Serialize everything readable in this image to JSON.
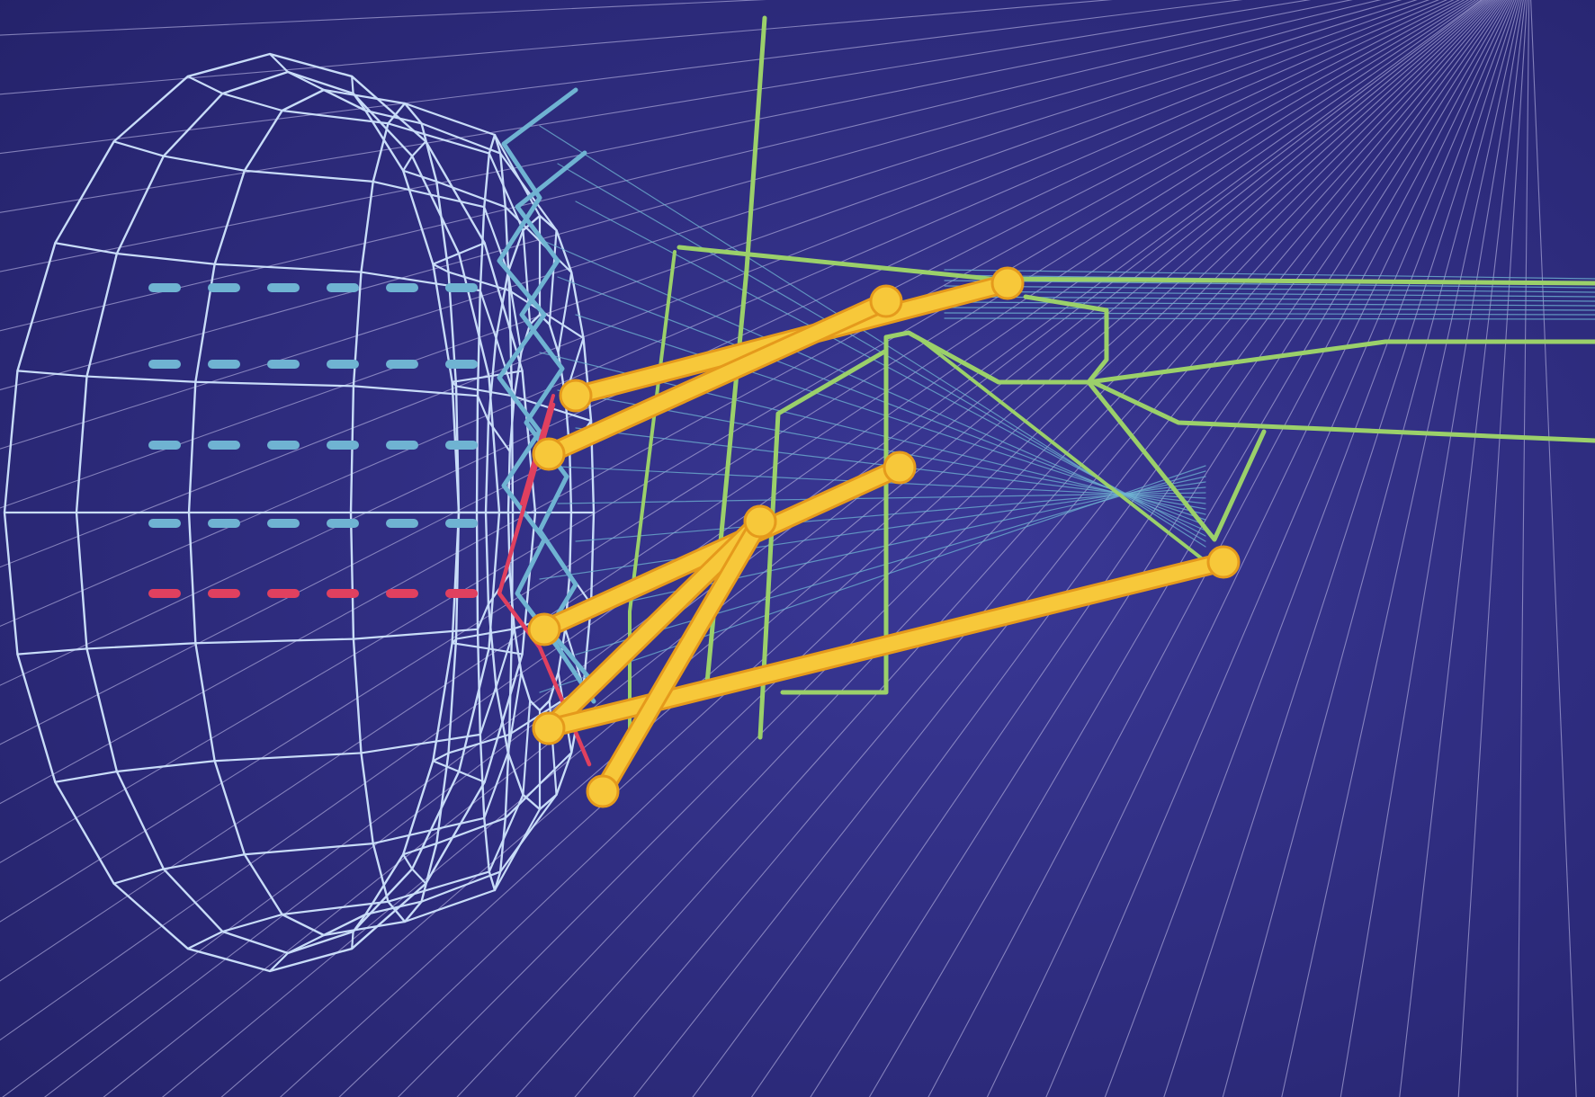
{
  "scene": {
    "colors": {
      "background_light": "#3a3896",
      "background_dark": "#24226a",
      "wireframe": "#c8dcf8",
      "rays": "#a9a6d8",
      "cyan": "#6fb3d2",
      "red": "#e0405f",
      "green": "#9bd06a",
      "yellow": "#f7c83a",
      "yellow_edge": "#e59a1c"
    },
    "objects": [
      "perspective-ray-fan",
      "wireframe-torus-disc",
      "dashed-guide-lines",
      "cyan-zigzag-fingers",
      "green-hand-skeleton",
      "yellow-finger-bones"
    ]
  }
}
